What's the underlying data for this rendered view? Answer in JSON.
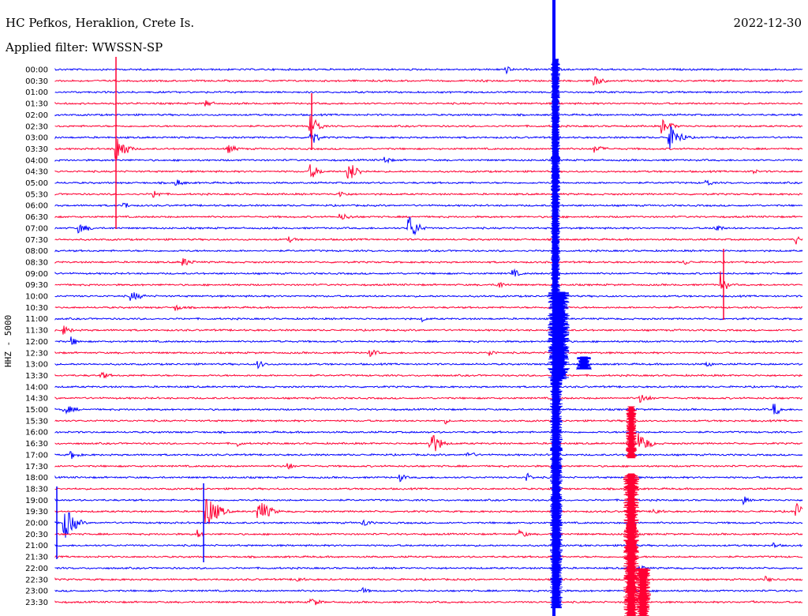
{
  "station": "HC Pefkos, Heraklion, Crete Is.",
  "date": "2022-12-30",
  "filter_label": "Applied filter: WWSSN-SP",
  "channel_label": "HHZ - 5000",
  "colors": {
    "blue": "#0000ff",
    "red": "#ff0033"
  },
  "times": [
    "00:00",
    "00:30",
    "01:00",
    "01:30",
    "02:00",
    "02:30",
    "03:00",
    "03:30",
    "04:00",
    "04:30",
    "05:00",
    "05:30",
    "06:00",
    "06:30",
    "07:00",
    "07:30",
    "08:00",
    "08:30",
    "09:00",
    "09:30",
    "10:00",
    "10:30",
    "11:00",
    "11:30",
    "12:00",
    "12:30",
    "13:00",
    "13:30",
    "14:00",
    "14:30",
    "15:00",
    "15:30",
    "16:00",
    "16:30",
    "17:00",
    "17:30",
    "18:00",
    "18:30",
    "19:00",
    "19:30",
    "20:00",
    "20:30",
    "21:00",
    "21:30",
    "22:00",
    "22:30",
    "23:00",
    "23:30"
  ]
}
